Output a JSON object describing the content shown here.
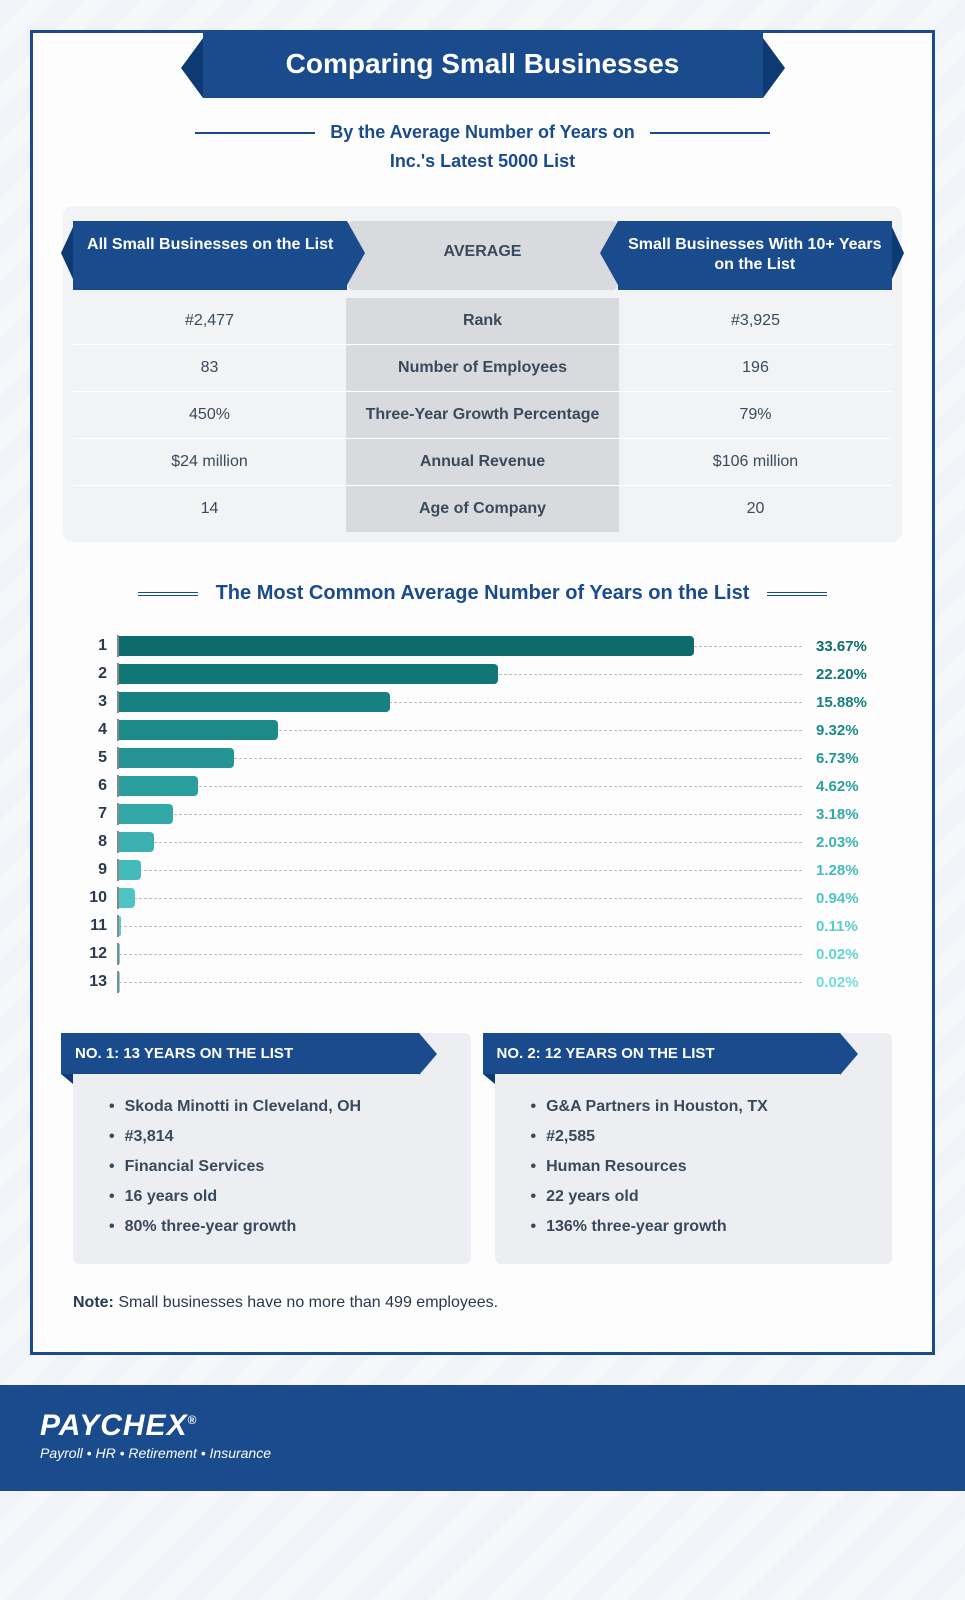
{
  "title": "Comparing Small Businesses",
  "subtitle_line1": "By the Average Number of Years on",
  "subtitle_line2": "Inc.'s Latest 5000 List",
  "comparison": {
    "left_header": "All Small Businesses on the List",
    "mid_header": "AVERAGE",
    "right_header": "Small Businesses With 10+ Years on the List",
    "rows": [
      {
        "left": "#2,477",
        "mid": "Rank",
        "right": "#3,925"
      },
      {
        "left": "83",
        "mid": "Number of Employees",
        "right": "196"
      },
      {
        "left": "450%",
        "mid": "Three-Year Growth Percentage",
        "right": "79%"
      },
      {
        "left": "$24 million",
        "mid": "Annual Revenue",
        "right": "$106 million"
      },
      {
        "left": "14",
        "mid": "Age of Company",
        "right": "20"
      }
    ]
  },
  "chart": {
    "title": "The Most Common Average Number of Years on the List",
    "max_pct": 40,
    "bars": [
      {
        "label": "1",
        "value": 33.67,
        "display": "33.67%",
        "color": "#0d6b6b"
      },
      {
        "label": "2",
        "value": 22.2,
        "display": "22.20%",
        "color": "#117676"
      },
      {
        "label": "3",
        "value": 15.88,
        "display": "15.88%",
        "color": "#178080"
      },
      {
        "label": "4",
        "value": 9.32,
        "display": "9.32%",
        "color": "#1d8a8a"
      },
      {
        "label": "5",
        "value": 6.73,
        "display": "6.73%",
        "color": "#249494"
      },
      {
        "label": "6",
        "value": 4.62,
        "display": "4.62%",
        "color": "#2b9e9e"
      },
      {
        "label": "7",
        "value": 3.18,
        "display": "3.18%",
        "color": "#33a8a8"
      },
      {
        "label": "8",
        "value": 2.03,
        "display": "2.03%",
        "color": "#3bb1b1"
      },
      {
        "label": "9",
        "value": 1.28,
        "display": "1.28%",
        "color": "#44bbbb"
      },
      {
        "label": "10",
        "value": 0.94,
        "display": "0.94%",
        "color": "#4ec4c4"
      },
      {
        "label": "11",
        "value": 0.11,
        "display": "0.11%",
        "color": "#58cccc"
      },
      {
        "label": "12",
        "value": 0.02,
        "display": "0.02%",
        "color": "#63d4d4"
      },
      {
        "label": "13",
        "value": 0.02,
        "display": "0.02%",
        "color": "#6fdcdc"
      }
    ],
    "label_colors": [
      "#0d6b6b",
      "#117676",
      "#178080",
      "#1d8a8a",
      "#249494",
      "#2b9e9e",
      "#33a8a8",
      "#3bb1b1",
      "#44bbbb",
      "#4ec4c4",
      "#58cccc",
      "#63d4d4",
      "#6fdcdc"
    ]
  },
  "cards": [
    {
      "flag": "NO. 1: 13 YEARS ON THE LIST",
      "items": [
        "Skoda Minotti in Cleveland, OH",
        "#3,814",
        "Financial Services",
        "16 years old",
        "80% three-year growth"
      ]
    },
    {
      "flag": "NO. 2: 12 YEARS ON THE LIST",
      "items": [
        "G&A Partners in Houston, TX",
        "#2,585",
        "Human Resources",
        "22 years old",
        "136% three-year growth"
      ]
    }
  ],
  "note_label": "Note:",
  "note_text": " Small businesses have no more than 499 employees.",
  "footer": {
    "brand": "PAYCHEX",
    "tagline": "Payroll • HR • Retirement • Insurance"
  }
}
